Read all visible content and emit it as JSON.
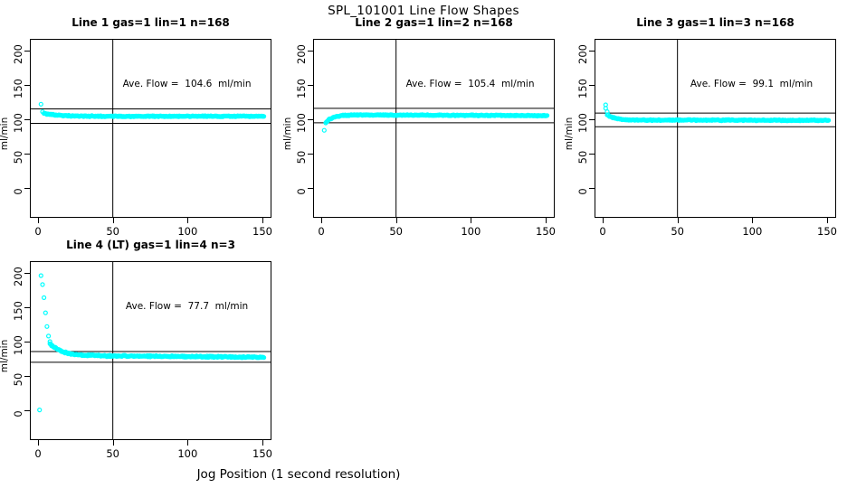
{
  "figure": {
    "title": "SPL_101001  Line Flow Shapes",
    "xlabel": "Jog Position (1 second resolution)",
    "marker": "open-circle",
    "marker_color": "#00FFFF",
    "axis_color": "#000000",
    "background_color": "#FFFFFF"
  },
  "chart_data": [
    {
      "type": "scatter",
      "title": "Line 1 gas=1 lin=1 n=168",
      "annotation": "Ave. Flow =  104.6  ml/min",
      "ave_flow_ml_min": 104.6,
      "n": 168,
      "ylabel": "ml/min",
      "x_ticks": [
        0,
        50,
        100,
        150
      ],
      "y_ticks": [
        0,
        50,
        100,
        150,
        200
      ],
      "xlim": [
        0,
        155
      ],
      "ylim": [
        0,
        210
      ],
      "vline_x": 50,
      "hlines": [
        115.1,
        94.1
      ],
      "points": [
        [
          2,
          122
        ],
        [
          3,
          111
        ]
      ],
      "band": [
        {
          "x0": 4,
          "x1": 151,
          "y0": 108.5,
          "y1": 104.4,
          "decay": 10,
          "jitter": 0.9
        }
      ]
    },
    {
      "type": "scatter",
      "title": "Line 2 gas=1 lin=2 n=168",
      "annotation": "Ave. Flow =  105.4  ml/min",
      "ave_flow_ml_min": 105.4,
      "n": 168,
      "ylabel": "ml/min",
      "x_ticks": [
        0,
        50,
        100,
        150
      ],
      "y_ticks": [
        0,
        50,
        100,
        150,
        200
      ],
      "xlim": [
        0,
        155
      ],
      "ylim": [
        0,
        210
      ],
      "vline_x": 50,
      "hlines": [
        116.0,
        94.9
      ],
      "points": [
        [
          2,
          84
        ]
      ],
      "band": [
        {
          "x0": 3,
          "x1": 22,
          "y0": 95,
          "y1": 106.4,
          "decay": 4.5,
          "jitter": 0.9
        },
        {
          "x0": 22,
          "x1": 151,
          "y0": 106.4,
          "y1": 105.3,
          "decay": null,
          "jitter": 0.9
        }
      ]
    },
    {
      "type": "scatter",
      "title": "Line 3 gas=1 lin=3 n=168",
      "annotation": "Ave. Flow =  99.1  ml/min",
      "ave_flow_ml_min": 99.1,
      "n": 168,
      "ylabel": "ml/min",
      "x_ticks": [
        0,
        50,
        100,
        150
      ],
      "y_ticks": [
        0,
        50,
        100,
        150,
        200
      ],
      "xlim": [
        0,
        155
      ],
      "ylim": [
        0,
        210
      ],
      "vline_x": 50,
      "hlines": [
        109.0,
        89.2
      ],
      "points": [
        [
          2,
          121
        ],
        [
          2,
          116
        ],
        [
          3,
          111
        ]
      ],
      "band": [
        {
          "x0": 3,
          "x1": 30,
          "y0": 107,
          "y1": 98.9,
          "decay": 5,
          "jitter": 0.9
        },
        {
          "x0": 30,
          "x1": 151,
          "y0": 98.9,
          "y1": 98.5,
          "decay": null,
          "jitter": 0.9
        }
      ]
    },
    {
      "type": "scatter",
      "title": "Line 4 (LT) gas=1 lin=4 n=3",
      "annotation": "Ave. Flow =  77.7  ml/min",
      "ave_flow_ml_min": 77.7,
      "n": 3,
      "ylabel": "ml/min",
      "x_ticks": [
        0,
        50,
        100,
        150
      ],
      "y_ticks": [
        0,
        50,
        100,
        150,
        200
      ],
      "xlim": [
        0,
        155
      ],
      "ylim": [
        0,
        210
      ],
      "vline_x": 50,
      "hlines": [
        85.5,
        69.9
      ],
      "points": [
        [
          1,
          0.5
        ],
        [
          2,
          196
        ],
        [
          3,
          183
        ],
        [
          4,
          164
        ],
        [
          5,
          142
        ],
        [
          6,
          122
        ],
        [
          7,
          108
        ],
        [
          8,
          100
        ]
      ],
      "band": [
        {
          "x0": 8,
          "x1": 45,
          "y0": 97,
          "y1": 79.3,
          "decay": 8,
          "jitter": 1.2
        },
        {
          "x0": 45,
          "x1": 151,
          "y0": 79.3,
          "y1": 77.3,
          "decay": null,
          "jitter": 1.2
        }
      ]
    }
  ]
}
